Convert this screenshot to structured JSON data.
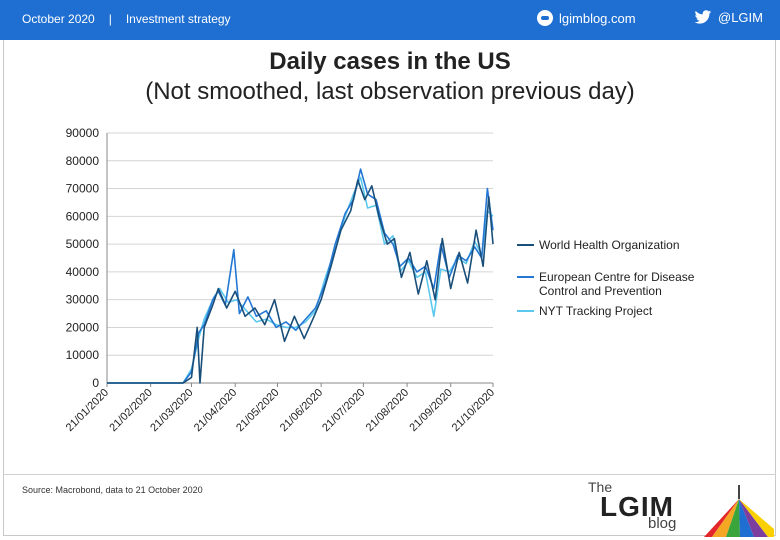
{
  "header": {
    "date": "October 2020",
    "separator": "|",
    "section": "Investment strategy",
    "site": "lgimblog.com",
    "twitter": "@LGIM",
    "bar_color": "#1f6fd2"
  },
  "footer": {
    "source": "Source: Macrobond, data to 21 October 2020",
    "logo_the": "The",
    "logo_main": "LGIM",
    "logo_blog": "blog"
  },
  "chart_data": {
    "type": "line",
    "title": "Daily cases in the US",
    "subtitle": "(Not smoothed, last observation previous day)",
    "xlabel": "",
    "ylabel": "",
    "ylim": [
      0,
      90000
    ],
    "yticks": [
      "0",
      "10000",
      "20000",
      "30000",
      "40000",
      "50000",
      "60000",
      "70000",
      "80000",
      "90000"
    ],
    "xticks": [
      "21/01/2020",
      "21/02/2020",
      "21/03/2020",
      "21/04/2020",
      "21/05/2020",
      "21/06/2020",
      "21/07/2020",
      "21/08/2020",
      "21/09/2020",
      "21/10/2020"
    ],
    "grid": true,
    "legend_position": "right",
    "series": [
      {
        "name": "World Health Organization",
        "color": "#1a4f7a",
        "points": [
          [
            "21/01/2020",
            0
          ],
          [
            "21/02/2020",
            0
          ],
          [
            "15/03/2020",
            0
          ],
          [
            "21/03/2020",
            2000
          ],
          [
            "25/03/2020",
            20000
          ],
          [
            "27/03/2020",
            0
          ],
          [
            "30/03/2020",
            20000
          ],
          [
            "05/04/2020",
            28000
          ],
          [
            "09/04/2020",
            34000
          ],
          [
            "15/04/2020",
            27000
          ],
          [
            "21/04/2020",
            33000
          ],
          [
            "28/04/2020",
            24000
          ],
          [
            "05/05/2020",
            27000
          ],
          [
            "12/05/2020",
            21000
          ],
          [
            "19/05/2020",
            30000
          ],
          [
            "26/05/2020",
            15000
          ],
          [
            "02/06/2020",
            24000
          ],
          [
            "09/06/2020",
            16000
          ],
          [
            "16/06/2020",
            24000
          ],
          [
            "21/06/2020",
            30000
          ],
          [
            "28/06/2020",
            42000
          ],
          [
            "05/07/2020",
            55000
          ],
          [
            "12/07/2020",
            62000
          ],
          [
            "17/07/2020",
            73000
          ],
          [
            "22/07/2020",
            66000
          ],
          [
            "27/07/2020",
            71000
          ],
          [
            "01/08/2020",
            60000
          ],
          [
            "07/08/2020",
            50000
          ],
          [
            "12/08/2020",
            52000
          ],
          [
            "17/08/2020",
            38000
          ],
          [
            "23/08/2020",
            47000
          ],
          [
            "29/08/2020",
            32000
          ],
          [
            "04/09/2020",
            44000
          ],
          [
            "10/09/2020",
            30000
          ],
          [
            "15/09/2020",
            52000
          ],
          [
            "21/09/2020",
            34000
          ],
          [
            "27/09/2020",
            47000
          ],
          [
            "03/10/2020",
            36000
          ],
          [
            "09/10/2020",
            55000
          ],
          [
            "14/10/2020",
            42000
          ],
          [
            "18/10/2020",
            67000
          ],
          [
            "21/10/2020",
            50000
          ]
        ]
      },
      {
        "name": "European Centre for Disease Control and Prevention",
        "color": "#2478d4",
        "points": [
          [
            "21/01/2020",
            0
          ],
          [
            "21/02/2020",
            0
          ],
          [
            "15/03/2020",
            0
          ],
          [
            "21/03/2020",
            4000
          ],
          [
            "26/03/2020",
            18000
          ],
          [
            "30/03/2020",
            21000
          ],
          [
            "05/04/2020",
            30000
          ],
          [
            "09/04/2020",
            33000
          ],
          [
            "14/04/2020",
            28000
          ],
          [
            "20/04/2020",
            48000
          ],
          [
            "24/04/2020",
            25000
          ],
          [
            "30/04/2020",
            31000
          ],
          [
            "06/05/2020",
            24000
          ],
          [
            "13/05/2020",
            26000
          ],
          [
            "20/05/2020",
            20000
          ],
          [
            "27/05/2020",
            22000
          ],
          [
            "03/06/2020",
            19000
          ],
          [
            "10/06/2020",
            23000
          ],
          [
            "17/06/2020",
            27000
          ],
          [
            "24/06/2020",
            36000
          ],
          [
            "01/07/2020",
            50000
          ],
          [
            "08/07/2020",
            61000
          ],
          [
            "14/07/2020",
            66000
          ],
          [
            "19/07/2020",
            77000
          ],
          [
            "24/07/2020",
            68000
          ],
          [
            "30/07/2020",
            66000
          ],
          [
            "05/08/2020",
            54000
          ],
          [
            "11/08/2020",
            50000
          ],
          [
            "16/08/2020",
            42000
          ],
          [
            "22/08/2020",
            45000
          ],
          [
            "28/08/2020",
            40000
          ],
          [
            "03/09/2020",
            42000
          ],
          [
            "09/09/2020",
            34000
          ],
          [
            "14/09/2020",
            50000
          ],
          [
            "20/09/2020",
            38000
          ],
          [
            "26/09/2020",
            46000
          ],
          [
            "02/10/2020",
            44000
          ],
          [
            "08/10/2020",
            49000
          ],
          [
            "13/10/2020",
            45000
          ],
          [
            "17/10/2020",
            70000
          ],
          [
            "21/10/2020",
            55000
          ]
        ]
      },
      {
        "name": "NYT Tracking Project",
        "color": "#5cc8ee",
        "points": [
          [
            "21/01/2020",
            0
          ],
          [
            "21/02/2020",
            0
          ],
          [
            "15/03/2020",
            0
          ],
          [
            "21/03/2020",
            5000
          ],
          [
            "26/03/2020",
            16000
          ],
          [
            "30/03/2020",
            23000
          ],
          [
            "06/04/2020",
            31000
          ],
          [
            "10/04/2020",
            34000
          ],
          [
            "16/04/2020",
            29000
          ],
          [
            "22/04/2020",
            30000
          ],
          [
            "29/04/2020",
            26000
          ],
          [
            "06/05/2020",
            22000
          ],
          [
            "13/05/2020",
            23000
          ],
          [
            "20/05/2020",
            21000
          ],
          [
            "27/05/2020",
            20000
          ],
          [
            "03/06/2020",
            20000
          ],
          [
            "10/06/2020",
            22000
          ],
          [
            "17/06/2020",
            26000
          ],
          [
            "24/06/2020",
            38000
          ],
          [
            "01/07/2020",
            48000
          ],
          [
            "08/07/2020",
            60000
          ],
          [
            "14/07/2020",
            68000
          ],
          [
            "19/07/2020",
            74000
          ],
          [
            "24/07/2020",
            63000
          ],
          [
            "30/07/2020",
            64000
          ],
          [
            "05/08/2020",
            50000
          ],
          [
            "11/08/2020",
            53000
          ],
          [
            "16/08/2020",
            40000
          ],
          [
            "22/08/2020",
            44000
          ],
          [
            "28/08/2020",
            38000
          ],
          [
            "03/09/2020",
            40000
          ],
          [
            "09/09/2020",
            24000
          ],
          [
            "14/09/2020",
            41000
          ],
          [
            "20/09/2020",
            40000
          ],
          [
            "26/09/2020",
            45000
          ],
          [
            "02/10/2020",
            43000
          ],
          [
            "08/10/2020",
            51000
          ],
          [
            "13/10/2020",
            46000
          ],
          [
            "17/10/2020",
            62000
          ],
          [
            "21/10/2020",
            60000
          ]
        ]
      }
    ]
  }
}
